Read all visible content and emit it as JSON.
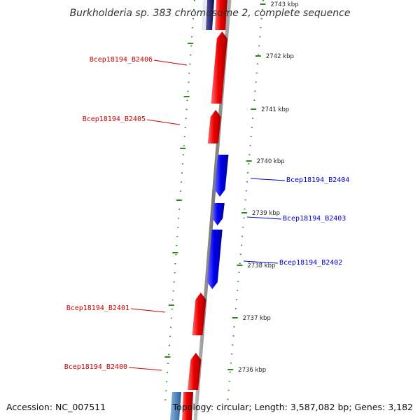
{
  "title": "Burkholderia sp. 383 chromosome 2, complete sequence",
  "footer": {
    "accession": "Accession: NC_007511",
    "summary": "Topology: circular; Length: 3,587,082 bp; Genes: 3,182"
  },
  "colors": {
    "forward_gene": "#e00000",
    "reverse_gene": "#0000e0",
    "backbone": "#888888",
    "tick": "#2a8a1a",
    "label_red": "#cc0000",
    "label_blue": "#0000cc"
  },
  "ticks": [
    {
      "label": "2743 kbp"
    },
    {
      "label": "2742 kbp"
    },
    {
      "label": "2741 kbp"
    },
    {
      "label": "2740 kbp"
    },
    {
      "label": "2739 kbp"
    },
    {
      "label": "2738 kbp"
    },
    {
      "label": "2737 kbp"
    },
    {
      "label": "2736 kbp"
    }
  ],
  "genes": [
    {
      "name": "Bcep18194_B2406",
      "strand": "forward"
    },
    {
      "name": "Bcep18194_B2405",
      "strand": "forward"
    },
    {
      "name": "Bcep18194_B2404",
      "strand": "reverse"
    },
    {
      "name": "Bcep18194_B2403",
      "strand": "reverse"
    },
    {
      "name": "Bcep18194_B2402",
      "strand": "reverse"
    },
    {
      "name": "Bcep18194_B2401",
      "strand": "forward"
    },
    {
      "name": "Bcep18194_B2400",
      "strand": "forward"
    }
  ]
}
